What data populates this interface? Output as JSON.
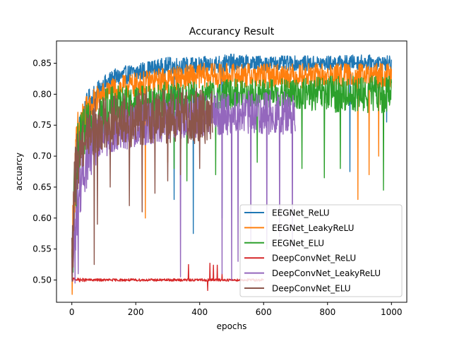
{
  "chart_data": {
    "type": "line",
    "title": "Accurancy Result",
    "xlabel": "epochs",
    "ylabel": "accuarcy",
    "xlim": [
      -48,
      1048
    ],
    "ylim": [
      0.464,
      0.886
    ],
    "xticks": [
      0,
      200,
      400,
      600,
      800,
      1000
    ],
    "yticks": [
      0.5,
      0.55,
      0.6,
      0.65,
      0.7,
      0.75,
      0.8,
      0.85
    ],
    "grid": false,
    "legend_position": "lower-right",
    "series": [
      {
        "name": "EEGNet_ReLU",
        "color": "#1f77b4",
        "x": [
          0,
          10,
          20,
          30,
          40,
          50,
          60,
          80,
          100,
          130,
          160,
          200,
          250,
          300,
          350,
          400,
          450,
          500,
          600,
          700,
          800,
          900,
          1000
        ],
        "y": [
          0.52,
          0.66,
          0.72,
          0.74,
          0.76,
          0.775,
          0.79,
          0.8,
          0.815,
          0.825,
          0.83,
          0.835,
          0.84,
          0.845,
          0.845,
          0.845,
          0.848,
          0.85,
          0.85,
          0.85,
          0.85,
          0.852,
          0.85
        ],
        "band": [
          0.06,
          0.06,
          0.05,
          0.04,
          0.035,
          0.03,
          0.025,
          0.02,
          0.015,
          0.015,
          0.015,
          0.015,
          0.015,
          0.015,
          0.015,
          0.015,
          0.015,
          0.015,
          0.012,
          0.012,
          0.012,
          0.012,
          0.012
        ],
        "dips": [
          [
            320,
            0.63
          ],
          [
            380,
            0.575
          ],
          [
            470,
            0.6
          ],
          [
            870,
            0.675
          ],
          [
            985,
            0.755
          ]
        ]
      },
      {
        "name": "EEGNet_LeakyReLU",
        "color": "#ff7f0e",
        "x": [
          0,
          10,
          20,
          30,
          40,
          50,
          60,
          80,
          100,
          150,
          200,
          250,
          300,
          400,
          500,
          600,
          700,
          800,
          900,
          1000
        ],
        "y": [
          0.52,
          0.68,
          0.73,
          0.75,
          0.76,
          0.77,
          0.78,
          0.79,
          0.8,
          0.81,
          0.815,
          0.82,
          0.825,
          0.83,
          0.83,
          0.83,
          0.83,
          0.83,
          0.83,
          0.83
        ],
        "band": [
          0.06,
          0.06,
          0.05,
          0.04,
          0.035,
          0.03,
          0.025,
          0.025,
          0.02,
          0.02,
          0.02,
          0.02,
          0.02,
          0.02,
          0.02,
          0.02,
          0.02,
          0.02,
          0.02,
          0.02
        ],
        "dips": [
          [
            230,
            0.6
          ],
          [
            300,
            0.69
          ],
          [
            895,
            0.63
          ],
          [
            930,
            0.67
          ],
          [
            960,
            0.7
          ]
        ]
      },
      {
        "name": "EEGNet_ELU",
        "color": "#2ca02c",
        "x": [
          0,
          10,
          20,
          30,
          40,
          50,
          60,
          80,
          100,
          150,
          200,
          300,
          400,
          500,
          600,
          700,
          800,
          900,
          1000
        ],
        "y": [
          0.5,
          0.66,
          0.7,
          0.72,
          0.73,
          0.74,
          0.75,
          0.76,
          0.77,
          0.78,
          0.785,
          0.79,
          0.795,
          0.8,
          0.8,
          0.8,
          0.8,
          0.8,
          0.8
        ],
        "band": [
          0.06,
          0.07,
          0.06,
          0.05,
          0.05,
          0.045,
          0.045,
          0.04,
          0.04,
          0.035,
          0.03,
          0.03,
          0.025,
          0.025,
          0.025,
          0.025,
          0.03,
          0.03,
          0.03
        ],
        "dips": [
          [
            320,
            0.68
          ],
          [
            360,
            0.66
          ],
          [
            450,
            0.67
          ],
          [
            580,
            0.69
          ],
          [
            720,
            0.68
          ],
          [
            790,
            0.665
          ],
          [
            840,
            0.68
          ],
          [
            975,
            0.645
          ]
        ]
      },
      {
        "name": "DeepConvNet_ReLU",
        "color": "#d62728",
        "x": [
          0,
          10,
          20,
          30,
          50,
          100,
          200,
          300,
          360,
          370,
          380,
          400,
          420,
          430,
          440,
          450,
          460,
          470,
          500,
          550,
          600
        ],
        "y": [
          0.5,
          0.502,
          0.5,
          0.5,
          0.5,
          0.5,
          0.5,
          0.5,
          0.5,
          0.5,
          0.5,
          0.5,
          0.5,
          0.5,
          0.5,
          0.5,
          0.5,
          0.5,
          0.5,
          0.5,
          0.5
        ],
        "band": [
          0.003,
          0.003,
          0.003,
          0.003,
          0.002,
          0.002,
          0.002,
          0.002,
          0.002,
          0.002,
          0.002,
          0.002,
          0.002,
          0.002,
          0.002,
          0.002,
          0.002,
          0.002,
          0.002,
          0.002,
          0.002
        ],
        "dips": [
          [
            365,
            0.525
          ],
          [
            425,
            0.483
          ],
          [
            432,
            0.527
          ],
          [
            443,
            0.524
          ],
          [
            455,
            0.524
          ],
          [
            470,
            0.51
          ]
        ]
      },
      {
        "name": "DeepConvNet_LeakyReLU",
        "color": "#9467bd",
        "x": [
          0,
          10,
          20,
          30,
          40,
          50,
          60,
          80,
          100,
          150,
          200,
          250,
          300,
          400,
          500,
          600,
          700
        ],
        "y": [
          0.5,
          0.58,
          0.63,
          0.66,
          0.68,
          0.7,
          0.71,
          0.72,
          0.73,
          0.74,
          0.75,
          0.755,
          0.76,
          0.765,
          0.77,
          0.77,
          0.77
        ],
        "band": [
          0.05,
          0.05,
          0.05,
          0.045,
          0.045,
          0.045,
          0.045,
          0.04,
          0.04,
          0.035,
          0.035,
          0.035,
          0.035,
          0.035,
          0.035,
          0.035,
          0.035
        ],
        "dips": [
          [
            10,
            0.495
          ],
          [
            20,
            0.51
          ],
          [
            340,
            0.505
          ],
          [
            470,
            0.51
          ],
          [
            500,
            0.5
          ],
          [
            520,
            0.53
          ],
          [
            560,
            0.56
          ],
          [
            610,
            0.55
          ],
          [
            650,
            0.57
          ],
          [
            690,
            0.55
          ]
        ]
      },
      {
        "name": "DeepConvNet_ELU",
        "color": "#8c564b",
        "x": [
          0,
          10,
          20,
          30,
          40,
          50,
          60,
          80,
          100,
          150,
          200,
          250,
          300,
          350,
          400,
          440
        ],
        "y": [
          0.52,
          0.66,
          0.7,
          0.72,
          0.73,
          0.74,
          0.745,
          0.75,
          0.755,
          0.76,
          0.76,
          0.765,
          0.765,
          0.765,
          0.765,
          0.765
        ],
        "band": [
          0.06,
          0.06,
          0.05,
          0.05,
          0.045,
          0.045,
          0.045,
          0.045,
          0.045,
          0.045,
          0.045,
          0.045,
          0.045,
          0.045,
          0.045,
          0.045
        ],
        "dips": [
          [
            70,
            0.525
          ],
          [
            80,
            0.59
          ],
          [
            120,
            0.65
          ],
          [
            180,
            0.62
          ],
          [
            220,
            0.61
          ],
          [
            260,
            0.64
          ],
          [
            300,
            0.66
          ],
          [
            340,
            0.67
          ],
          [
            400,
            0.68
          ]
        ]
      }
    ]
  }
}
